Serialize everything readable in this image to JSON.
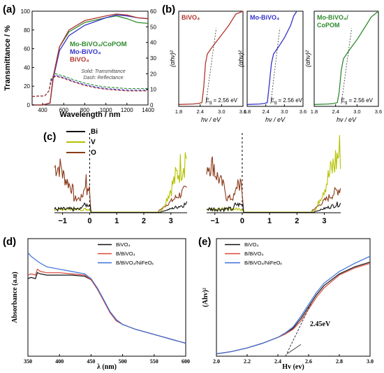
{
  "colors": {
    "green": "#2e8b2e",
    "blue": "#3333cc",
    "red": "#b0342a",
    "brown": "#8b3a1a",
    "lime": "#b5c200",
    "black": "#111111",
    "bfe_blue": "#3a6fd8",
    "bfe_red": "#d9483b"
  },
  "panels": {
    "a": {
      "label": "(a)"
    },
    "b": {
      "label": "(b)"
    },
    "c": {
      "label": "(c)"
    },
    "d": {
      "label": "(d)"
    },
    "e": {
      "label": "(e)"
    }
  },
  "chart_data": [
    {
      "id": "a",
      "type": "line",
      "xlabel": "Wavelength / nm",
      "ylabel": "Transmittance / %",
      "xlim": [
        300,
        1400
      ],
      "ylim": [
        0,
        100
      ],
      "ylim_right": [
        0,
        60
      ],
      "xticks": [
        "400",
        "600",
        "800",
        "1000",
        "1200",
        "1400"
      ],
      "yticks": [
        "0",
        "20",
        "40",
        "60",
        "80",
        "100"
      ],
      "yticks_right": [
        "0",
        "10",
        "20",
        "30",
        "40",
        "50",
        "60"
      ],
      "annotation": [
        "Solid: Transmittance",
        "Dash: Reflectance"
      ],
      "series": [
        {
          "name": "Mo-BiVO₄/CoPOM",
          "color": "#2e8b2e",
          "transmittance": {
            "x": [
              300,
              400,
              470,
              500,
              560,
              650,
              800,
              1000,
              1100,
              1200,
              1300,
              1400
            ],
            "y": [
              0,
              0,
              2,
              30,
              62,
              78,
              88,
              93,
              95,
              92,
              88,
              87
            ]
          },
          "reflectance": {
            "x": [
              300,
              420,
              460,
              480,
              520,
              600,
              700,
              800,
              900,
              1000,
              1100,
              1200,
              1400
            ],
            "y": [
              5.5,
              5.8,
              9,
              17,
              20,
              18.5,
              16,
              14,
              12.5,
              11.5,
              11,
              10.5,
              10.5
            ]
          }
        },
        {
          "name": "Mo-BiVO₄",
          "color": "#3333cc",
          "transmittance": {
            "x": [
              300,
              400,
              470,
              500,
              560,
              650,
              800,
              1000,
              1100,
              1200,
              1300,
              1400
            ],
            "y": [
              0,
              0,
              2,
              28,
              58,
              74,
              85,
              93,
              96,
              95,
              93,
              92
            ]
          },
          "reflectance": {
            "x": [
              300,
              420,
              460,
              480,
              520,
              600,
              700,
              800,
              900,
              1000,
              1100,
              1200,
              1400
            ],
            "y": [
              5.5,
              5.8,
              9,
              16,
              19,
              17.5,
              15,
              13,
              11.5,
              10.5,
              10,
              9.5,
              9.5
            ]
          }
        },
        {
          "name": "BiVO₄",
          "color": "#b0342a",
          "transmittance": {
            "x": [
              300,
              400,
              470,
              500,
              560,
              650,
              800,
              1000,
              1100,
              1200,
              1300,
              1400
            ],
            "y": [
              0,
              0,
              2,
              30,
              62,
              80,
              90,
              95,
              97,
              96,
              93,
              92
            ]
          },
          "reflectance": {
            "x": [
              300,
              420,
              460,
              480,
              520,
              600,
              700,
              800,
              900,
              1000,
              1100,
              1200,
              1400
            ],
            "y": [
              5.5,
              5.8,
              9,
              15,
              18.5,
              17,
              14.5,
              12.5,
              11,
              10,
              9.5,
              9,
              9
            ]
          }
        }
      ]
    },
    {
      "id": "b",
      "type": "line",
      "xlabel": "hν / eV",
      "ylabel": "(αhν)²",
      "xlim": [
        1.8,
        3.6
      ],
      "xticks": [
        "1.8",
        "2.4",
        "3.0",
        "3.6"
      ],
      "subplots": [
        {
          "name": "BiVO₄",
          "color": "#b0342a",
          "eg_label": "E",
          "eg_sub": "g",
          "eg_value": "= 2.56 eV",
          "x": [
            1.8,
            2.2,
            2.35,
            2.45,
            2.5,
            2.55,
            2.6,
            2.75,
            3.0,
            3.2,
            3.4,
            3.6
          ],
          "y": [
            0.02,
            0.025,
            0.03,
            0.04,
            0.2,
            0.45,
            0.55,
            0.63,
            0.75,
            0.85,
            0.97,
            1.0
          ]
        },
        {
          "name": "Mo-BiVO₄",
          "color": "#3333cc",
          "eg_label": "E",
          "eg_sub": "g",
          "eg_value": "= 2.56 eV",
          "x": [
            1.8,
            2.2,
            2.35,
            2.45,
            2.52,
            2.58,
            2.65,
            2.8,
            3.0,
            3.2,
            3.3,
            3.4
          ],
          "y": [
            0.02,
            0.025,
            0.03,
            0.04,
            0.25,
            0.45,
            0.55,
            0.62,
            0.72,
            0.85,
            0.95,
            1.0
          ]
        },
        {
          "name": "Mo-BiVO₄/",
          "name2": "CoPOM",
          "color": "#2e8b2e",
          "eg_label": "E",
          "eg_sub": "g",
          "eg_value": "= 2.56 eV",
          "x": [
            1.8,
            2.2,
            2.35,
            2.45,
            2.5,
            2.56,
            2.62,
            2.8,
            3.0,
            3.2,
            3.4,
            3.6
          ],
          "y": [
            0.02,
            0.025,
            0.03,
            0.04,
            0.15,
            0.38,
            0.5,
            0.6,
            0.7,
            0.82,
            0.94,
            1.0
          ]
        }
      ]
    },
    {
      "id": "c",
      "type": "line",
      "xticks": [
        "−1",
        "0",
        "1",
        "2",
        "3"
      ],
      "xlim": [
        -1.3,
        3.6
      ],
      "legend": [
        "Bi",
        "V",
        "O"
      ],
      "series_colors": [
        "#111111",
        "#b5c200",
        "#8b3a1a"
      ]
    },
    {
      "id": "d",
      "type": "line",
      "xlabel": "λ (nm)",
      "ylabel": "Absorbance (a.u)",
      "xlim": [
        350,
        600
      ],
      "xticks": [
        "350",
        "400",
        "450",
        "500",
        "550",
        "600"
      ],
      "series": [
        {
          "name": "BiVO₄",
          "color": "#111111",
          "x": [
            350,
            355,
            362,
            365,
            370,
            380,
            400,
            420,
            440,
            450,
            460,
            470,
            480,
            490,
            500,
            510,
            520,
            540,
            560,
            580,
            600
          ],
          "y": [
            0.66,
            0.67,
            0.66,
            0.71,
            0.7,
            0.69,
            0.69,
            0.69,
            0.68,
            0.65,
            0.58,
            0.48,
            0.38,
            0.31,
            0.27,
            0.25,
            0.23,
            0.2,
            0.17,
            0.14,
            0.11
          ]
        },
        {
          "name": "B/BiVO₄",
          "color": "#d9483b",
          "x": [
            350,
            355,
            362,
            365,
            370,
            380,
            400,
            420,
            440,
            450,
            460,
            470,
            480,
            490,
            500,
            510,
            520,
            540,
            560,
            580,
            600
          ],
          "y": [
            0.69,
            0.7,
            0.69,
            0.74,
            0.72,
            0.71,
            0.71,
            0.7,
            0.69,
            0.65,
            0.57,
            0.47,
            0.37,
            0.3,
            0.27,
            0.25,
            0.23,
            0.2,
            0.17,
            0.14,
            0.11
          ]
        },
        {
          "name": "B/BiVO₄/NiFeOₓ",
          "color": "#3a6fd8",
          "x": [
            350,
            355,
            362,
            370,
            380,
            400,
            420,
            440,
            450,
            460,
            470,
            480,
            490,
            500,
            510,
            520,
            540,
            560,
            580,
            600
          ],
          "y": [
            0.88,
            0.85,
            0.82,
            0.79,
            0.76,
            0.74,
            0.72,
            0.7,
            0.66,
            0.58,
            0.48,
            0.38,
            0.31,
            0.27,
            0.25,
            0.23,
            0.2,
            0.17,
            0.14,
            0.11
          ]
        }
      ]
    },
    {
      "id": "e",
      "type": "line",
      "xlabel": "Hv (ev)",
      "ylabel": "(Ahv)²",
      "xlim": [
        2.0,
        3.0
      ],
      "xticks": [
        "2.0",
        "2.2",
        "2.4",
        "2.6",
        "2.8",
        "3.0"
      ],
      "annotation": "2.45eV",
      "series": [
        {
          "name": "BiVO₄",
          "color": "#111111",
          "x": [
            2.0,
            2.1,
            2.2,
            2.3,
            2.4,
            2.45,
            2.5,
            2.55,
            2.6,
            2.65,
            2.7,
            2.8,
            2.9,
            3.0
          ],
          "y": [
            0.02,
            0.04,
            0.07,
            0.11,
            0.16,
            0.19,
            0.24,
            0.32,
            0.42,
            0.52,
            0.6,
            0.7,
            0.76,
            0.8
          ]
        },
        {
          "name": "B/BiVO₄",
          "color": "#d9483b",
          "x": [
            2.0,
            2.1,
            2.2,
            2.3,
            2.4,
            2.45,
            2.5,
            2.55,
            2.6,
            2.65,
            2.7,
            2.8,
            2.9,
            3.0
          ],
          "y": [
            0.02,
            0.04,
            0.07,
            0.11,
            0.16,
            0.19,
            0.23,
            0.3,
            0.4,
            0.5,
            0.58,
            0.69,
            0.75,
            0.79
          ]
        },
        {
          "name": "B/BiVO₄/NiFeOₓ",
          "color": "#3a6fd8",
          "x": [
            2.0,
            2.1,
            2.2,
            2.3,
            2.4,
            2.45,
            2.5,
            2.55,
            2.6,
            2.65,
            2.7,
            2.8,
            2.9,
            3.0
          ],
          "y": [
            0.02,
            0.04,
            0.07,
            0.11,
            0.16,
            0.2,
            0.25,
            0.34,
            0.44,
            0.54,
            0.62,
            0.72,
            0.79,
            0.85
          ]
        }
      ]
    }
  ]
}
